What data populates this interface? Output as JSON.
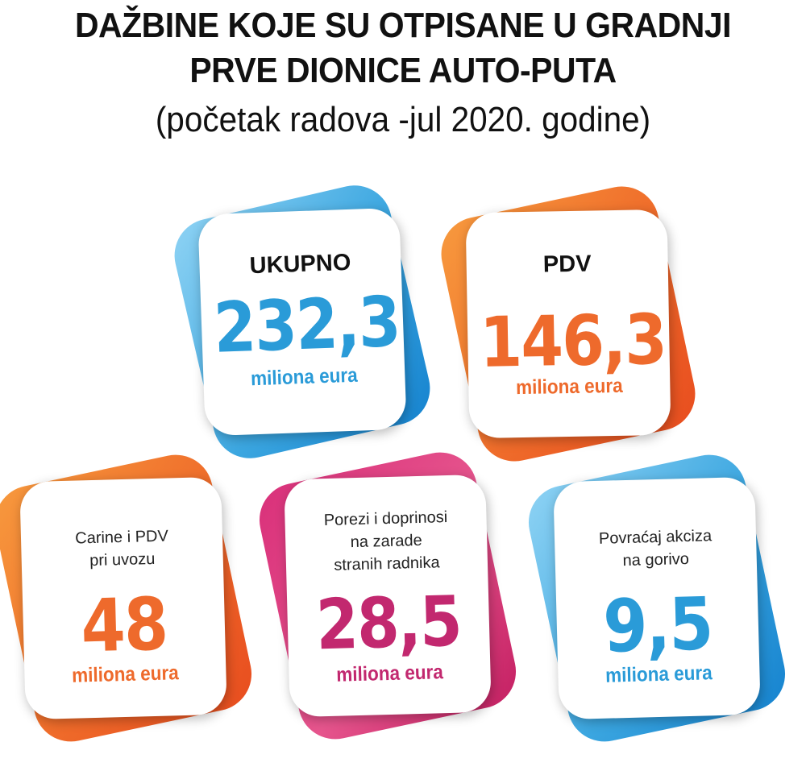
{
  "title": {
    "line1": "DAŽBINE KOJE SU OTPISANE U GRADNJI",
    "line2": "PRVE DIONICE AUTO-PUTA",
    "subtitle": "(početak radova -jul 2020. godine)"
  },
  "cards": {
    "ukupno": {
      "label": "UKUPNO",
      "value": "232,3",
      "unit": "miliona eura",
      "color": "#2a9bd8"
    },
    "pdv": {
      "label": "PDV",
      "value": "146,3",
      "unit": "miliona eura",
      "color": "#ee6a2c"
    },
    "carine": {
      "label_line1": "Carine i PDV",
      "label_line2": "pri uvozu",
      "value": "48",
      "unit": "miliona eura",
      "color": "#ee6a2c"
    },
    "porezi": {
      "label_line1": "Porezi i doprinosi",
      "label_line2": "na zarade",
      "label_line3": "stranih radnika",
      "value": "28,5",
      "unit": "miliona eura",
      "color": "#c2286f"
    },
    "povracaj": {
      "label_line1": "Povraćaj akciza",
      "label_line2": "na gorivo",
      "value": "9,5",
      "unit": "miliona eura",
      "color": "#2a9bd8"
    }
  }
}
